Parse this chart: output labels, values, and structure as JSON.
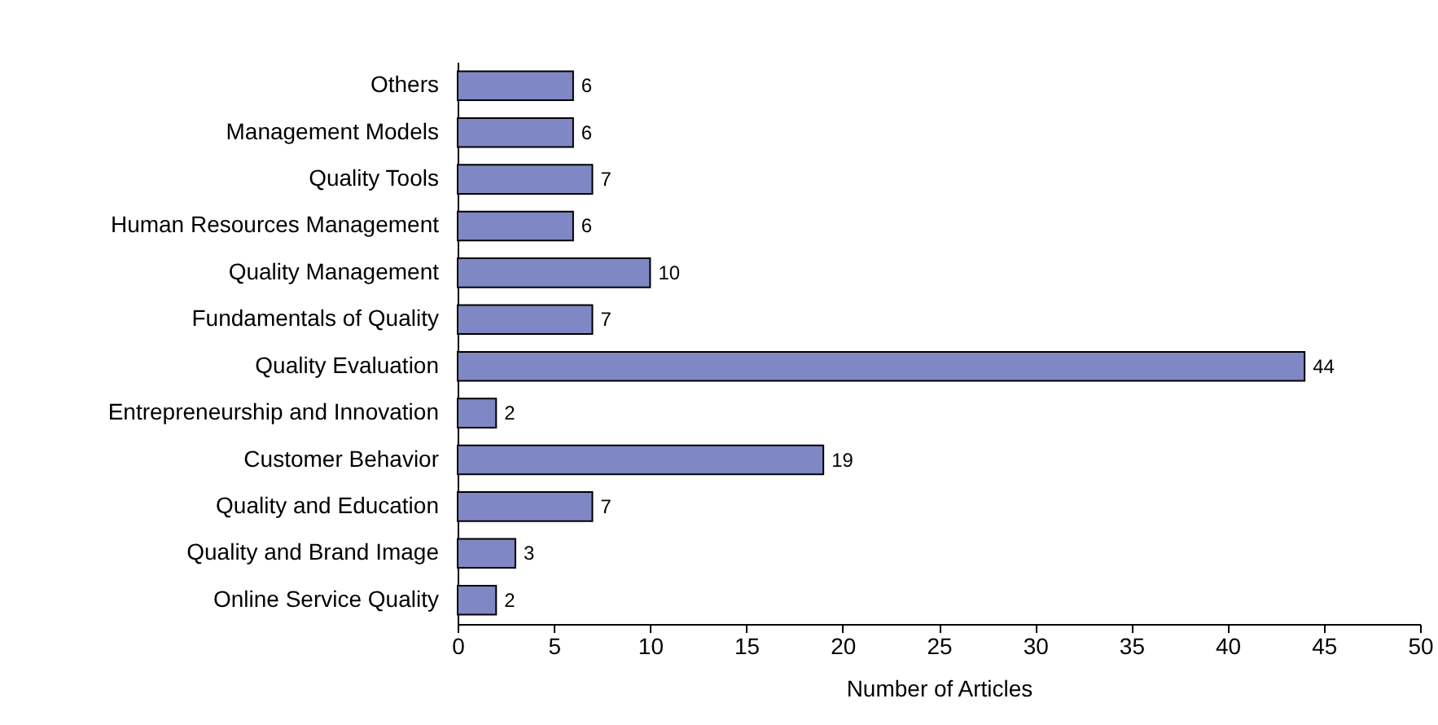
{
  "chart_data": {
    "type": "bar",
    "orientation": "horizontal",
    "xlabel": "Number of Articles",
    "categories": [
      "Others",
      "Management Models",
      "Quality Tools",
      "Human Resources Management",
      "Quality Management",
      "Fundamentals of Quality",
      "Quality Evaluation",
      "Entrepreneurship and Innovation",
      "Customer Behavior",
      "Quality and Education",
      "Quality and Brand Image",
      "Online Service Quality"
    ],
    "values": [
      6,
      6,
      7,
      6,
      10,
      7,
      44,
      2,
      19,
      7,
      3,
      2
    ],
    "color": "#7f87c4",
    "xlim": [
      0,
      50
    ],
    "xticks": [
      0,
      5,
      10,
      15,
      20,
      25,
      30,
      35,
      40,
      45,
      50
    ],
    "data_labels": true
  }
}
